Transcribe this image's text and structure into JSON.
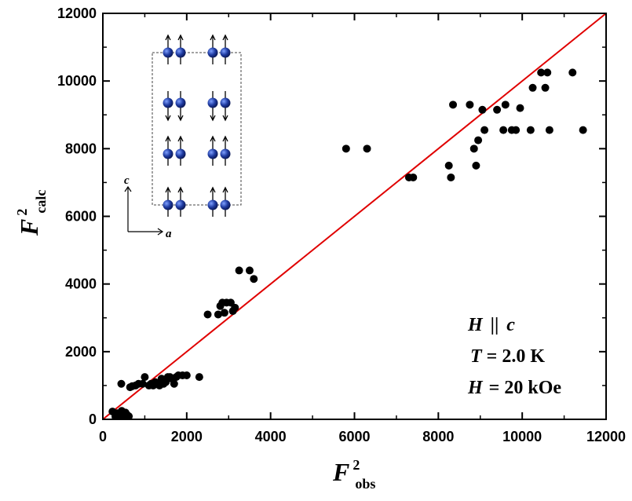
{
  "chart_data": {
    "type": "scatter",
    "xlabel": {
      "main": "F",
      "sup": "2",
      "sub": "obs"
    },
    "ylabel": {
      "main": "F",
      "sup": "2",
      "sub": "calc"
    },
    "xlim": [
      0,
      12000
    ],
    "ylim": [
      0,
      12000
    ],
    "x_ticks": [
      0,
      2000,
      4000,
      6000,
      8000,
      10000,
      12000
    ],
    "y_ticks": [
      0,
      2000,
      4000,
      6000,
      8000,
      10000,
      12000
    ],
    "fit_line": {
      "from": [
        0,
        0
      ],
      "to": [
        12000,
        12000
      ],
      "color": "#e00000"
    },
    "points_color": "#000000",
    "points": [
      [
        230,
        230
      ],
      [
        300,
        80
      ],
      [
        340,
        180
      ],
      [
        380,
        50
      ],
      [
        400,
        30
      ],
      [
        420,
        130
      ],
      [
        450,
        250
      ],
      [
        470,
        40
      ],
      [
        500,
        10
      ],
      [
        520,
        110
      ],
      [
        540,
        200
      ],
      [
        560,
        60
      ],
      [
        580,
        130
      ],
      [
        600,
        30
      ],
      [
        620,
        90
      ],
      [
        440,
        1050
      ],
      [
        650,
        950
      ],
      [
        700,
        980
      ],
      [
        780,
        1000
      ],
      [
        850,
        1050
      ],
      [
        950,
        1050
      ],
      [
        1000,
        1250
      ],
      [
        1100,
        1000
      ],
      [
        1150,
        1050
      ],
      [
        1200,
        1000
      ],
      [
        1250,
        1100
      ],
      [
        1300,
        1050
      ],
      [
        1350,
        1000
      ],
      [
        1400,
        1200
      ],
      [
        1450,
        1050
      ],
      [
        1500,
        1100
      ],
      [
        1550,
        1250
      ],
      [
        1600,
        1250
      ],
      [
        1650,
        1200
      ],
      [
        1700,
        1050
      ],
      [
        1750,
        1250
      ],
      [
        1800,
        1300
      ],
      [
        1900,
        1300
      ],
      [
        2000,
        1300
      ],
      [
        2300,
        1250
      ],
      [
        2500,
        3100
      ],
      [
        2750,
        3100
      ],
      [
        2800,
        3350
      ],
      [
        2850,
        3450
      ],
      [
        2900,
        3150
      ],
      [
        2950,
        3450
      ],
      [
        3050,
        3450
      ],
      [
        3100,
        3200
      ],
      [
        3150,
        3300
      ],
      [
        3250,
        4400
      ],
      [
        3500,
        4400
      ],
      [
        3600,
        4150
      ],
      [
        5800,
        8000
      ],
      [
        6300,
        8000
      ],
      [
        7300,
        7150
      ],
      [
        7400,
        7150
      ],
      [
        8250,
        7500
      ],
      [
        8300,
        7150
      ],
      [
        8350,
        9300
      ],
      [
        8750,
        9300
      ],
      [
        8850,
        8000
      ],
      [
        8900,
        7500
      ],
      [
        8950,
        8250
      ],
      [
        9050,
        9150
      ],
      [
        9100,
        8550
      ],
      [
        9400,
        9150
      ],
      [
        9550,
        8550
      ],
      [
        9600,
        9300
      ],
      [
        9750,
        8550
      ],
      [
        9850,
        8550
      ],
      [
        9950,
        9200
      ],
      [
        10200,
        8550
      ],
      [
        10250,
        9800
      ],
      [
        10450,
        10250
      ],
      [
        10550,
        9800
      ],
      [
        10600,
        10250
      ],
      [
        10650,
        8550
      ],
      [
        11200,
        10250
      ],
      [
        11450,
        8550
      ]
    ],
    "annotations": {
      "field_dir": {
        "var": "H",
        "rel": "||",
        "axis": "c"
      },
      "temperature": {
        "var": "T",
        "rest": "= 2.0 K"
      },
      "field": {
        "var": "H",
        "rest": "= 20 kOe"
      }
    },
    "inset": {
      "type": "spin-structure",
      "axis_labels": {
        "vertical": "c",
        "horizontal": "a"
      },
      "layers": [
        "up",
        "down",
        "up",
        "up"
      ],
      "atom_color": "#1e3aa0"
    }
  }
}
